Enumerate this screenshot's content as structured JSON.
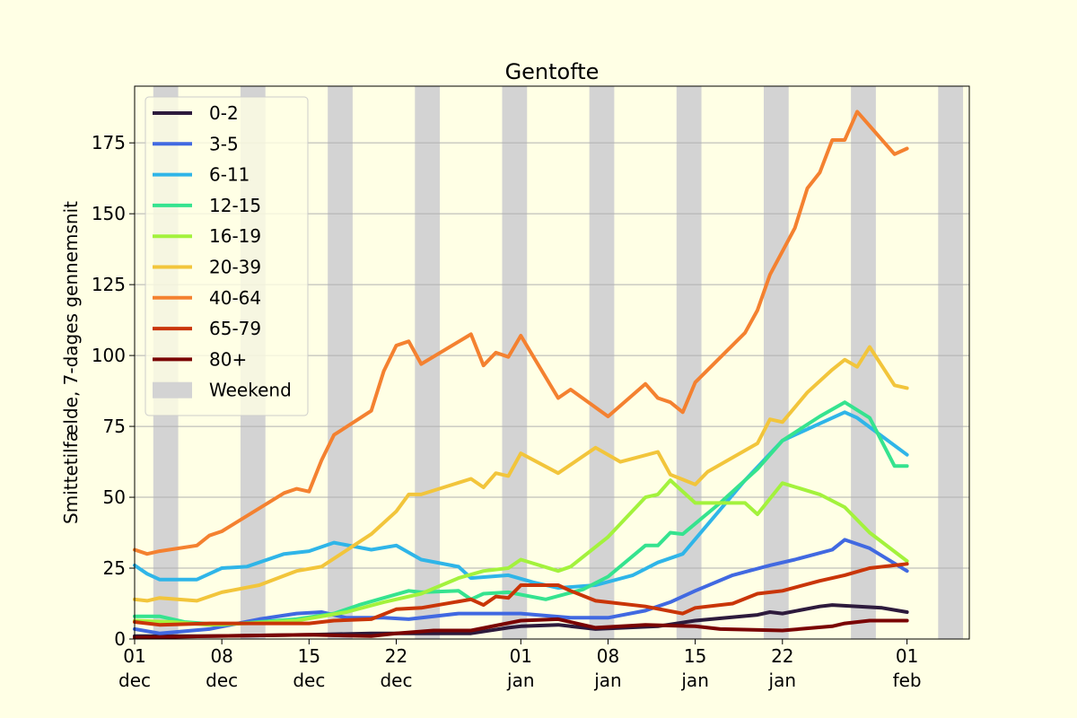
{
  "figure": {
    "background": "#ffffe5"
  },
  "chart_data": {
    "type": "line",
    "title": "Gentofte",
    "xlabel": "",
    "ylabel": "Smittetilfælde, 7-dages gennemsnit",
    "x_start": "2020-12-01",
    "x_end": "2021-02-06",
    "ylim": [
      0,
      195
    ],
    "yticks": [
      0,
      25,
      50,
      75,
      100,
      125,
      150,
      175
    ],
    "xticks": [
      {
        "date": "2020-12-01",
        "label": [
          "01",
          "dec"
        ]
      },
      {
        "date": "2020-12-08",
        "label": [
          "08",
          "dec"
        ]
      },
      {
        "date": "2020-12-15",
        "label": [
          "15",
          "dec"
        ]
      },
      {
        "date": "2020-12-22",
        "label": [
          "22",
          "dec"
        ]
      },
      {
        "date": "2021-01-01",
        "label": [
          "01",
          "jan"
        ]
      },
      {
        "date": "2021-01-08",
        "label": [
          "08",
          "jan"
        ]
      },
      {
        "date": "2021-01-15",
        "label": [
          "15",
          "jan"
        ]
      },
      {
        "date": "2021-01-22",
        "label": [
          "22",
          "jan"
        ]
      },
      {
        "date": "2021-02-01",
        "label": [
          "01",
          "feb"
        ]
      }
    ],
    "grid": "horizontal",
    "legend_position": "upper-left",
    "weekend_label": "Weekend",
    "weekend_color": "#d3d3d3",
    "weekends": [
      [
        "2020-12-03",
        "2020-12-05"
      ],
      [
        "2020-12-10",
        "2020-12-12"
      ],
      [
        "2020-12-17",
        "2020-12-19"
      ],
      [
        "2020-12-24",
        "2020-12-26"
      ],
      [
        "2020-12-31",
        "2021-01-02"
      ],
      [
        "2021-01-07",
        "2021-01-09"
      ],
      [
        "2021-01-14",
        "2021-01-16"
      ],
      [
        "2021-01-21",
        "2021-01-23"
      ],
      [
        "2021-01-28",
        "2021-01-30"
      ],
      [
        "2021-02-04",
        "2021-02-06"
      ]
    ],
    "series": [
      {
        "name": "0-2",
        "color": "#2d1a3c",
        "points": [
          [
            "2020-12-01",
            1.0
          ],
          [
            "2020-12-07",
            1.0
          ],
          [
            "2020-12-15",
            1.5
          ],
          [
            "2020-12-20",
            2.0
          ],
          [
            "2020-12-26",
            2.0
          ],
          [
            "2020-12-28",
            2.0
          ],
          [
            "2020-12-31",
            4.0
          ],
          [
            "2021-01-01",
            4.5
          ],
          [
            "2021-01-04",
            5.0
          ],
          [
            "2021-01-07",
            3.5
          ],
          [
            "2021-01-12",
            4.5
          ],
          [
            "2021-01-15",
            6.5
          ],
          [
            "2021-01-20",
            8.5
          ],
          [
            "2021-01-21",
            9.5
          ],
          [
            "2021-01-22",
            9.0
          ],
          [
            "2021-01-25",
            11.5
          ],
          [
            "2021-01-26",
            12.0
          ],
          [
            "2021-01-30",
            11.0
          ],
          [
            "2021-02-01",
            9.5
          ]
        ]
      },
      {
        "name": "3-5",
        "color": "#4169e1",
        "points": [
          [
            "2020-12-01",
            3.5
          ],
          [
            "2020-12-03",
            2.0
          ],
          [
            "2020-12-07",
            3.5
          ],
          [
            "2020-12-11",
            7.0
          ],
          [
            "2020-12-14",
            9.0
          ],
          [
            "2020-12-16",
            9.5
          ],
          [
            "2020-12-18",
            7.5
          ],
          [
            "2020-12-21",
            7.5
          ],
          [
            "2020-12-23",
            7.0
          ],
          [
            "2020-12-27",
            9.0
          ],
          [
            "2021-01-01",
            9.0
          ],
          [
            "2021-01-05",
            7.5
          ],
          [
            "2021-01-08",
            7.5
          ],
          [
            "2021-01-11",
            10.0
          ],
          [
            "2021-01-13",
            13.0
          ],
          [
            "2021-01-15",
            17.0
          ],
          [
            "2021-01-18",
            22.5
          ],
          [
            "2021-01-21",
            26.0
          ],
          [
            "2021-01-23",
            28.0
          ],
          [
            "2021-01-26",
            31.5
          ],
          [
            "2021-01-27",
            35.0
          ],
          [
            "2021-01-29",
            32.0
          ],
          [
            "2021-02-01",
            24.0
          ]
        ]
      },
      {
        "name": "6-11",
        "color": "#2fb5e8",
        "points": [
          [
            "2020-12-01",
            26.0
          ],
          [
            "2020-12-02",
            23.0
          ],
          [
            "2020-12-03",
            21.0
          ],
          [
            "2020-12-06",
            21.0
          ],
          [
            "2020-12-08",
            25.0
          ],
          [
            "2020-12-10",
            25.5
          ],
          [
            "2020-12-13",
            30.0
          ],
          [
            "2020-12-15",
            31.0
          ],
          [
            "2020-12-17",
            34.0
          ],
          [
            "2020-12-20",
            31.5
          ],
          [
            "2020-12-22",
            33.0
          ],
          [
            "2020-12-24",
            28.0
          ],
          [
            "2020-12-27",
            25.5
          ],
          [
            "2020-12-28",
            21.5
          ],
          [
            "2020-12-31",
            22.5
          ],
          [
            "2021-01-02",
            20.0
          ],
          [
            "2021-01-04",
            18.0
          ],
          [
            "2021-01-07",
            19.0
          ],
          [
            "2021-01-10",
            22.5
          ],
          [
            "2021-01-12",
            27.0
          ],
          [
            "2021-01-14",
            30.0
          ],
          [
            "2021-01-19",
            56.0
          ],
          [
            "2021-01-22",
            70.0
          ],
          [
            "2021-01-25",
            76.0
          ],
          [
            "2021-01-27",
            80.0
          ],
          [
            "2021-01-28",
            78.0
          ],
          [
            "2021-02-01",
            65.0
          ]
        ]
      },
      {
        "name": "12-15",
        "color": "#35e38f",
        "points": [
          [
            "2020-12-01",
            8.0
          ],
          [
            "2020-12-03",
            8.0
          ],
          [
            "2020-12-05",
            6.0
          ],
          [
            "2020-12-08",
            5.0
          ],
          [
            "2020-12-11",
            6.0
          ],
          [
            "2020-12-14",
            7.0
          ],
          [
            "2020-12-17",
            9.0
          ],
          [
            "2020-12-19",
            12.0
          ],
          [
            "2020-12-21",
            14.5
          ],
          [
            "2020-12-23",
            17.0
          ],
          [
            "2020-12-24",
            16.5
          ],
          [
            "2020-12-27",
            17.0
          ],
          [
            "2020-12-28",
            14.0
          ],
          [
            "2020-12-29",
            16.0
          ],
          [
            "2020-12-31",
            16.5
          ],
          [
            "2021-01-03",
            14.0
          ],
          [
            "2021-01-06",
            17.5
          ],
          [
            "2021-01-08",
            22.0
          ],
          [
            "2021-01-11",
            33.0
          ],
          [
            "2021-01-12",
            33.0
          ],
          [
            "2021-01-13",
            37.5
          ],
          [
            "2021-01-14",
            37.0
          ],
          [
            "2021-01-17",
            48.0
          ],
          [
            "2021-01-20",
            60.0
          ],
          [
            "2021-01-22",
            70.0
          ],
          [
            "2021-01-25",
            78.5
          ],
          [
            "2021-01-27",
            83.5
          ],
          [
            "2021-01-29",
            78.0
          ],
          [
            "2021-01-31",
            61.0
          ],
          [
            "2021-02-01",
            61.0
          ]
        ]
      },
      {
        "name": "16-19",
        "color": "#a3f23c",
        "points": [
          [
            "2020-12-01",
            6.5
          ],
          [
            "2020-12-04",
            6.0
          ],
          [
            "2020-12-07",
            5.0
          ],
          [
            "2020-12-10",
            5.5
          ],
          [
            "2020-12-14",
            6.5
          ],
          [
            "2020-12-18",
            9.5
          ],
          [
            "2020-12-21",
            13.0
          ],
          [
            "2020-12-24",
            16.0
          ],
          [
            "2020-12-27",
            21.5
          ],
          [
            "2020-12-29",
            24.0
          ],
          [
            "2020-12-31",
            25.0
          ],
          [
            "2021-01-01",
            28.0
          ],
          [
            "2021-01-04",
            24.0
          ],
          [
            "2021-01-05",
            25.5
          ],
          [
            "2021-01-08",
            36.0
          ],
          [
            "2021-01-11",
            50.0
          ],
          [
            "2021-01-12",
            51.0
          ],
          [
            "2021-01-13",
            56.0
          ],
          [
            "2021-01-15",
            48.0
          ],
          [
            "2021-01-17",
            48.0
          ],
          [
            "2021-01-19",
            48.0
          ],
          [
            "2021-01-20",
            44.0
          ],
          [
            "2021-01-22",
            55.0
          ],
          [
            "2021-01-25",
            51.0
          ],
          [
            "2021-01-27",
            46.5
          ],
          [
            "2021-01-29",
            37.5
          ],
          [
            "2021-02-01",
            27.5
          ]
        ]
      },
      {
        "name": "20-39",
        "color": "#f2c53b",
        "points": [
          [
            "2020-12-01",
            14.0
          ],
          [
            "2020-12-02",
            13.5
          ],
          [
            "2020-12-03",
            14.5
          ],
          [
            "2020-12-06",
            13.5
          ],
          [
            "2020-12-08",
            16.5
          ],
          [
            "2020-12-11",
            19.0
          ],
          [
            "2020-12-14",
            24.0
          ],
          [
            "2020-12-16",
            25.5
          ],
          [
            "2020-12-20",
            37.0
          ],
          [
            "2020-12-22",
            45.0
          ],
          [
            "2020-12-23",
            51.0
          ],
          [
            "2020-12-24",
            51.0
          ],
          [
            "2020-12-28",
            56.5
          ],
          [
            "2020-12-29",
            53.5
          ],
          [
            "2020-12-30",
            58.5
          ],
          [
            "2020-12-31",
            57.5
          ],
          [
            "2021-01-01",
            65.5
          ],
          [
            "2021-01-04",
            58.5
          ],
          [
            "2021-01-07",
            67.5
          ],
          [
            "2021-01-09",
            62.5
          ],
          [
            "2021-01-12",
            66.0
          ],
          [
            "2021-01-13",
            58.0
          ],
          [
            "2021-01-15",
            54.5
          ],
          [
            "2021-01-16",
            59.0
          ],
          [
            "2021-01-20",
            69.0
          ],
          [
            "2021-01-21",
            77.5
          ],
          [
            "2021-01-22",
            76.5
          ],
          [
            "2021-01-24",
            87.0
          ],
          [
            "2021-01-26",
            95.0
          ],
          [
            "2021-01-27",
            98.5
          ],
          [
            "2021-01-28",
            96.0
          ],
          [
            "2021-01-29",
            103.0
          ],
          [
            "2021-01-31",
            89.5
          ],
          [
            "2021-02-01",
            88.5
          ]
        ]
      },
      {
        "name": "40-64",
        "color": "#f48130",
        "points": [
          [
            "2020-12-01",
            31.5
          ],
          [
            "2020-12-02",
            30.0
          ],
          [
            "2020-12-03",
            31.0
          ],
          [
            "2020-12-06",
            33.0
          ],
          [
            "2020-12-07",
            36.5
          ],
          [
            "2020-12-08",
            38.0
          ],
          [
            "2020-12-13",
            51.5
          ],
          [
            "2020-12-14",
            53.0
          ],
          [
            "2020-12-15",
            52.0
          ],
          [
            "2020-12-16",
            63.0
          ],
          [
            "2020-12-17",
            72.0
          ],
          [
            "2020-12-20",
            80.5
          ],
          [
            "2020-12-21",
            94.5
          ],
          [
            "2020-12-22",
            103.5
          ],
          [
            "2020-12-23",
            105.0
          ],
          [
            "2020-12-24",
            97.0
          ],
          [
            "2020-12-28",
            107.5
          ],
          [
            "2020-12-29",
            96.5
          ],
          [
            "2020-12-30",
            101.0
          ],
          [
            "2020-12-31",
            99.5
          ],
          [
            "2021-01-01",
            107.0
          ],
          [
            "2021-01-04",
            85.0
          ],
          [
            "2021-01-05",
            88.0
          ],
          [
            "2021-01-08",
            78.5
          ],
          [
            "2021-01-11",
            90.0
          ],
          [
            "2021-01-12",
            85.0
          ],
          [
            "2021-01-13",
            83.5
          ],
          [
            "2021-01-14",
            80.0
          ],
          [
            "2021-01-15",
            90.5
          ],
          [
            "2021-01-19",
            108.0
          ],
          [
            "2021-01-20",
            116.0
          ],
          [
            "2021-01-21",
            128.5
          ],
          [
            "2021-01-23",
            145.0
          ],
          [
            "2021-01-24",
            159.0
          ],
          [
            "2021-01-25",
            164.5
          ],
          [
            "2021-01-26",
            176.0
          ],
          [
            "2021-01-27",
            176.0
          ],
          [
            "2021-01-28",
            186.0
          ],
          [
            "2021-01-31",
            171.0
          ],
          [
            "2021-02-01",
            173.0
          ]
        ]
      },
      {
        "name": "65-79",
        "color": "#c93508",
        "points": [
          [
            "2020-12-01",
            6.0
          ],
          [
            "2020-12-03",
            5.0
          ],
          [
            "2020-12-07",
            5.5
          ],
          [
            "2020-12-11",
            5.5
          ],
          [
            "2020-12-15",
            5.5
          ],
          [
            "2020-12-17",
            6.5
          ],
          [
            "2020-12-20",
            7.0
          ],
          [
            "2020-12-22",
            10.5
          ],
          [
            "2020-12-24",
            11.0
          ],
          [
            "2020-12-28",
            14.0
          ],
          [
            "2020-12-29",
            12.0
          ],
          [
            "2020-12-30",
            15.0
          ],
          [
            "2020-12-31",
            14.5
          ],
          [
            "2021-01-01",
            19.0
          ],
          [
            "2021-01-04",
            19.0
          ],
          [
            "2021-01-05",
            17.0
          ],
          [
            "2021-01-07",
            13.5
          ],
          [
            "2021-01-11",
            11.5
          ],
          [
            "2021-01-14",
            9.0
          ],
          [
            "2021-01-15",
            11.0
          ],
          [
            "2021-01-18",
            12.5
          ],
          [
            "2021-01-20",
            16.0
          ],
          [
            "2021-01-22",
            17.0
          ],
          [
            "2021-01-25",
            20.5
          ],
          [
            "2021-01-27",
            22.5
          ],
          [
            "2021-01-29",
            25.0
          ],
          [
            "2021-02-01",
            26.5
          ]
        ]
      },
      {
        "name": "80+",
        "color": "#7a0403",
        "points": [
          [
            "2020-12-01",
            0.5
          ],
          [
            "2020-12-07",
            1.0
          ],
          [
            "2020-12-15",
            1.5
          ],
          [
            "2020-12-20",
            1.0
          ],
          [
            "2020-12-22",
            2.0
          ],
          [
            "2020-12-25",
            3.0
          ],
          [
            "2020-12-28",
            3.0
          ],
          [
            "2021-01-01",
            6.5
          ],
          [
            "2021-01-04",
            7.0
          ],
          [
            "2021-01-07",
            4.0
          ],
          [
            "2021-01-11",
            5.0
          ],
          [
            "2021-01-15",
            4.5
          ],
          [
            "2021-01-17",
            3.5
          ],
          [
            "2021-01-22",
            3.0
          ],
          [
            "2021-01-26",
            4.5
          ],
          [
            "2021-01-27",
            5.5
          ],
          [
            "2021-01-29",
            6.5
          ],
          [
            "2021-02-01",
            6.5
          ]
        ]
      }
    ]
  }
}
